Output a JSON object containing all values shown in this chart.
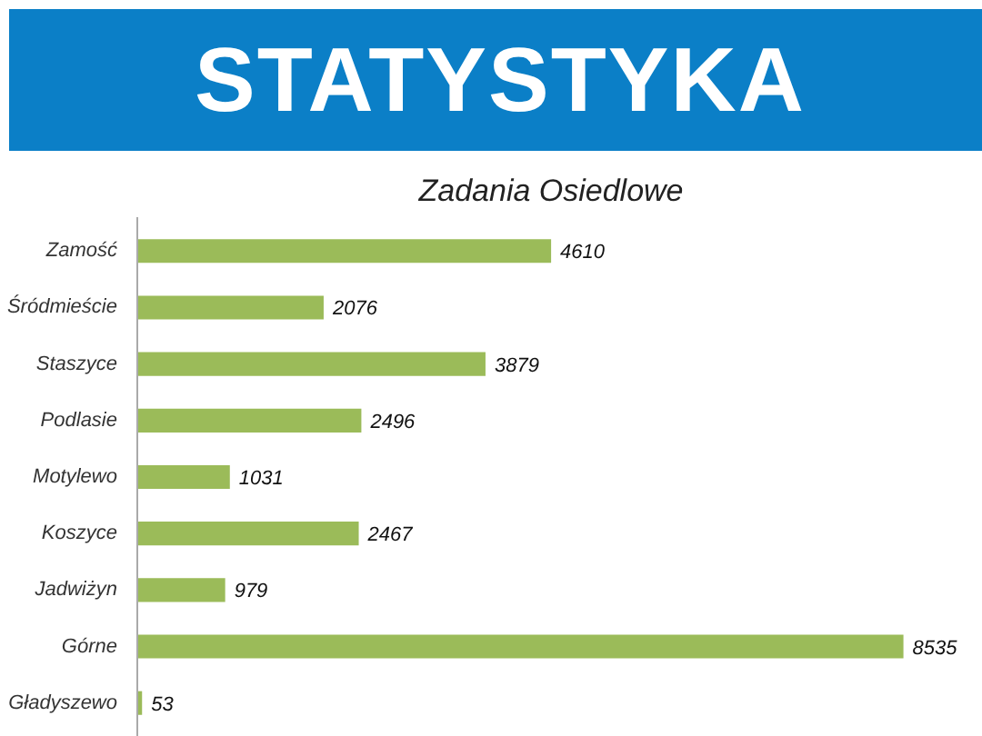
{
  "chart_data": {
    "type": "bar",
    "orientation": "horizontal",
    "title": "STATYSTYKA",
    "subtitle": "Zadania Osiedlowe",
    "categories": [
      "Zamość",
      "Śródmieście",
      "Staszyce",
      "Podlasie",
      "Motylewo",
      "Koszyce",
      "Jadwiżyn",
      "Górne",
      "Gładyszewo"
    ],
    "values": [
      4610,
      2076,
      3879,
      2496,
      1031,
      2467,
      979,
      8535,
      53
    ],
    "color": "#9bbb59",
    "data_labels": true,
    "grid": false,
    "tick_labels": "y"
  }
}
